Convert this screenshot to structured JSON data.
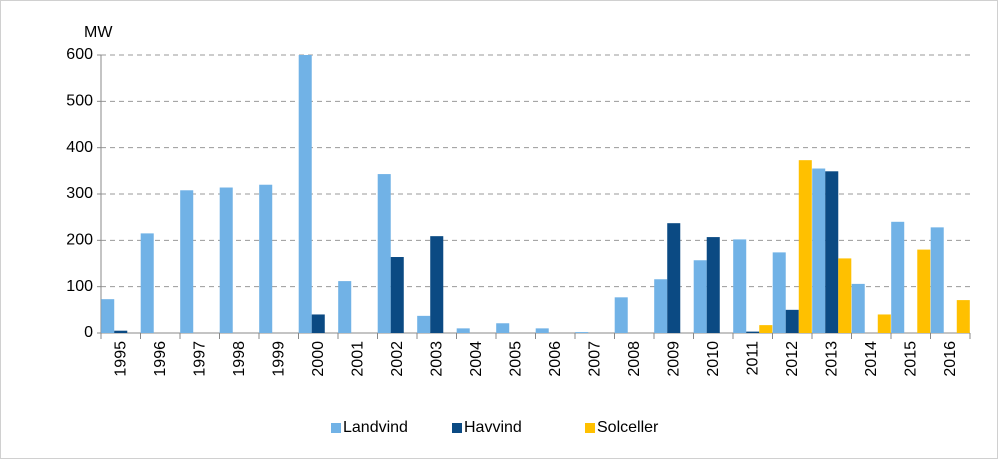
{
  "chart_data": {
    "type": "bar",
    "y_label": "MW",
    "categories": [
      "1995",
      "1996",
      "1997",
      "1998",
      "1999",
      "2000",
      "2001",
      "2002",
      "2003",
      "2004",
      "2005",
      "2006",
      "2007",
      "2008",
      "2009",
      "2010",
      "2011",
      "2012",
      "2013",
      "2014",
      "2015",
      "2016"
    ],
    "series": [
      {
        "name": "Landvind",
        "color": "#71b2e6",
        "values": [
          73,
          215,
          308,
          314,
          320,
          600,
          112,
          343,
          37,
          10,
          21,
          10,
          2,
          77,
          116,
          157,
          202,
          174,
          355,
          106,
          240,
          228
        ]
      },
      {
        "name": "Havvind",
        "color": "#0b4a83",
        "values": [
          5,
          0,
          0,
          0,
          0,
          40,
          0,
          164,
          209,
          0,
          0,
          0,
          0,
          0,
          237,
          207,
          3,
          50,
          349,
          0,
          0,
          0
        ]
      },
      {
        "name": "Solceller",
        "color": "#ffc000",
        "values": [
          0,
          0,
          0,
          0,
          0,
          0,
          0,
          0,
          0,
          0,
          0,
          0,
          0,
          0,
          0,
          0,
          17,
          373,
          161,
          40,
          180,
          71
        ]
      }
    ],
    "ylim": [
      0,
      600
    ],
    "yticks": [
      0,
      100,
      200,
      300,
      400,
      500,
      600
    ],
    "grid": true,
    "legend": "bottom"
  }
}
